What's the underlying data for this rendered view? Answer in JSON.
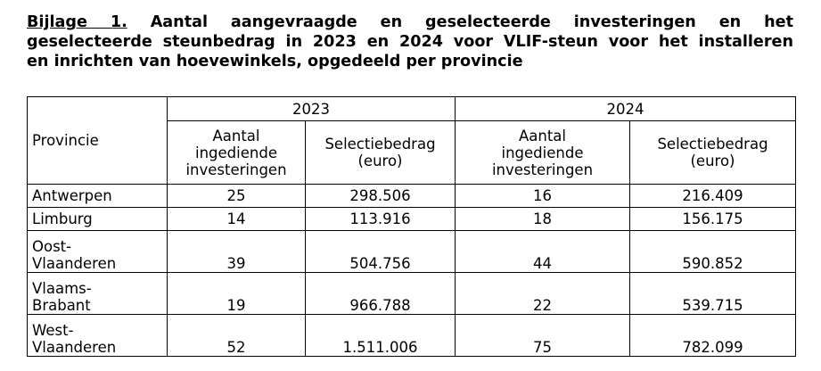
{
  "heading": {
    "lead": "Bijlage 1.",
    "line1_rest": "Aantal aangevraagde en geselecteerde investeringen en het",
    "line2": "geselecteerde steunbedrag in 2023 en 2024 voor VLIF-steun voor het installeren",
    "line3": "en inrichten van hoevewinkels, opgedeeld per provincie"
  },
  "table": {
    "province_header": "Provincie",
    "years": [
      "2023",
      "2024"
    ],
    "col_count_header": [
      "Aantal",
      "ingediende",
      "investeringen"
    ],
    "col_amount_header": [
      "Selectiebedrag",
      "(euro)"
    ],
    "rows": [
      {
        "name": [
          "Antwerpen"
        ],
        "c2023": "25",
        "a2023": "298.506",
        "c2024": "16",
        "a2024": "216.409"
      },
      {
        "name": [
          "Limburg"
        ],
        "c2023": "14",
        "a2023": "113.916",
        "c2024": "18",
        "a2024": "156.175"
      },
      {
        "name": [
          "Oost-",
          "Vlaanderen"
        ],
        "c2023": "39",
        "a2023": "504.756",
        "c2024": "44",
        "a2024": "590.852"
      },
      {
        "name": [
          "Vlaams-",
          "Brabant"
        ],
        "c2023": "19",
        "a2023": "966.788",
        "c2024": "22",
        "a2024": "539.715"
      },
      {
        "name": [
          "West-",
          "Vlaanderen"
        ],
        "c2023": "52",
        "a2023": "1.511.006",
        "c2024": "75",
        "a2024": "782.099"
      }
    ]
  }
}
